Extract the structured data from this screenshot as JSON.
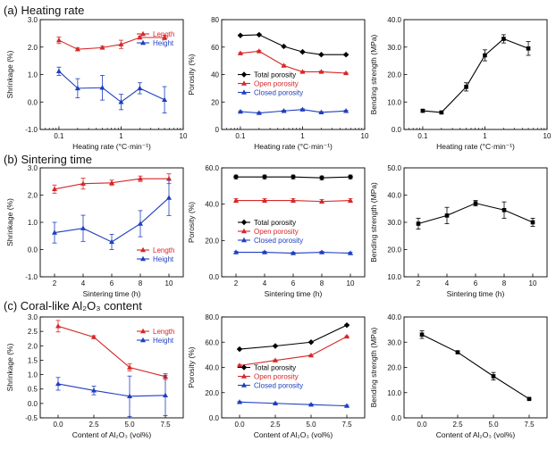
{
  "sections": [
    {
      "label": "(a) Heating rate"
    },
    {
      "label": "(b) Sintering time"
    },
    {
      "label": "(c) Coral-like Al₂O₃ content"
    }
  ],
  "colors": {
    "length": "#d62728",
    "height": "#1f3fbf",
    "total": "#000000",
    "open": "#d62728",
    "closed": "#1f3fbf"
  },
  "chart_data": [
    {
      "type": "line",
      "section": 0,
      "xscale": "log",
      "xlabel": "Heating rate (°C·min⁻¹)",
      "ylabel": "Shrinkage (%)",
      "xlim": [
        0.05,
        10
      ],
      "ylim": [
        -1.0,
        3.0
      ],
      "xticks": [
        0.1,
        1,
        10
      ],
      "xticklabels": [
        "0.1",
        "1",
        "10"
      ],
      "yticks": [
        -1.0,
        0.0,
        1.0,
        2.0,
        3.0
      ],
      "yticklabels": [
        "-1.0",
        "0.0",
        "1.0",
        "2.0",
        "3.0"
      ],
      "legend": "top-right",
      "x": [
        0.1,
        0.2,
        0.5,
        1,
        2,
        5
      ],
      "series": [
        {
          "name": "Length",
          "color": "#d62728",
          "marker": "triangle",
          "values": [
            2.25,
            1.92,
            1.98,
            2.1,
            2.35,
            2.35
          ],
          "errors": [
            0.12,
            0.05,
            0.05,
            0.15,
            0.05,
            0.08
          ]
        },
        {
          "name": "Height",
          "color": "#1f3fbf",
          "marker": "triangle",
          "values": [
            1.12,
            0.5,
            0.52,
            0.0,
            0.5,
            0.08
          ],
          "errors": [
            0.15,
            0.35,
            0.45,
            0.28,
            0.2,
            0.48
          ]
        }
      ]
    },
    {
      "type": "line",
      "section": 0,
      "xscale": "log",
      "xlabel": "Heating rate (°C·min⁻¹)",
      "ylabel": "Porosity (%)",
      "xlim": [
        0.05,
        10
      ],
      "ylim": [
        0,
        80
      ],
      "xticks": [
        0.1,
        1,
        10
      ],
      "xticklabels": [
        "0.1",
        "1",
        "10"
      ],
      "yticks": [
        0,
        20,
        40,
        60,
        80
      ],
      "yticklabels": [
        "0",
        "20",
        "40",
        "60",
        "80"
      ],
      "legend": "center",
      "x": [
        0.1,
        0.2,
        0.5,
        1,
        2,
        5
      ],
      "series": [
        {
          "name": "Total porosity",
          "color": "#000000",
          "marker": "diamond",
          "values": [
            68.5,
            69,
            60.5,
            56.5,
            54.5,
            54.5
          ],
          "errors": [
            0.5,
            0.5,
            0.5,
            0.5,
            0.5,
            0.5
          ]
        },
        {
          "name": "Open porosity",
          "color": "#d62728",
          "marker": "triangle",
          "values": [
            55.5,
            57,
            46.5,
            42,
            42,
            41
          ],
          "errors": [
            0.5,
            0.5,
            0.5,
            0.5,
            0.5,
            0.5
          ]
        },
        {
          "name": "Closed porosity",
          "color": "#1f3fbf",
          "marker": "triangle",
          "values": [
            13,
            12,
            13.5,
            14.5,
            12.5,
            13.5
          ],
          "errors": [
            0.5,
            0.5,
            0.5,
            0.5,
            0.5,
            0.5
          ]
        }
      ]
    },
    {
      "type": "line",
      "section": 0,
      "xscale": "log",
      "xlabel": "Heating rate (°C·min⁻¹)",
      "ylabel": "Bending strength (MPa)",
      "xlim": [
        0.05,
        10
      ],
      "ylim": [
        0,
        40
      ],
      "xticks": [
        0.1,
        1,
        10
      ],
      "xticklabels": [
        "0.1",
        "1",
        "10"
      ],
      "yticks": [
        0,
        10,
        20,
        30,
        40
      ],
      "yticklabels": [
        "0.0",
        "10.0",
        "20.0",
        "30.0",
        "40.0"
      ],
      "x": [
        0.1,
        0.2,
        0.5,
        1,
        2,
        5
      ],
      "series": [
        {
          "color": "#000000",
          "marker": "square",
          "values": [
            6.8,
            6.2,
            15.5,
            27,
            33,
            29.5
          ],
          "errors": [
            0.5,
            0.4,
            1.5,
            2.0,
            1.5,
            2.5
          ]
        }
      ]
    },
    {
      "type": "line",
      "section": 1,
      "xlabel": "Sintering time (h)",
      "ylabel": "Shrinkage (%)",
      "xlim": [
        1,
        11
      ],
      "ylim": [
        -1.0,
        3.0
      ],
      "xticks": [
        2,
        4,
        6,
        8,
        10
      ],
      "xticklabels": [
        "2",
        "4",
        "6",
        "8",
        "10"
      ],
      "yticks": [
        -1.0,
        0.0,
        1.0,
        2.0,
        3.0
      ],
      "yticklabels": [
        "-1.0",
        "0.0",
        "1.0",
        "2.0",
        "3.0"
      ],
      "legend": "bottom-right",
      "x": [
        2,
        4,
        6,
        8,
        10
      ],
      "series": [
        {
          "name": "Length",
          "color": "#d62728",
          "marker": "triangle",
          "values": [
            2.22,
            2.42,
            2.45,
            2.6,
            2.6
          ],
          "errors": [
            0.15,
            0.2,
            0.1,
            0.1,
            0.18
          ]
        },
        {
          "name": "Height",
          "color": "#1f3fbf",
          "marker": "triangle",
          "values": [
            0.62,
            0.78,
            0.28,
            0.95,
            1.9
          ],
          "errors": [
            0.38,
            0.48,
            0.28,
            0.48,
            0.65
          ]
        }
      ]
    },
    {
      "type": "line",
      "section": 1,
      "xlabel": "Sintering time (h)",
      "ylabel": "Porosity (%)",
      "xlim": [
        1,
        11
      ],
      "ylim": [
        0,
        60
      ],
      "xticks": [
        2,
        4,
        6,
        8,
        10
      ],
      "xticklabels": [
        "2",
        "4",
        "6",
        "8",
        "10"
      ],
      "yticks": [
        0,
        20,
        40,
        60
      ],
      "yticklabels": [
        "0.0",
        "20.0",
        "40.0",
        "60.0"
      ],
      "legend": "center",
      "x": [
        2,
        4,
        6,
        8,
        10
      ],
      "series": [
        {
          "name": "Total porosity",
          "color": "#000000",
          "marker": "diamond",
          "values": [
            55,
            55,
            55,
            54.5,
            55
          ],
          "errors": [
            1,
            1,
            1,
            1,
            1
          ]
        },
        {
          "name": "Open porosity",
          "color": "#d62728",
          "marker": "triangle",
          "values": [
            42,
            42,
            42,
            41.5,
            42
          ],
          "errors": [
            1,
            1,
            1,
            1,
            1
          ]
        },
        {
          "name": "Closed porosity",
          "color": "#1f3fbf",
          "marker": "triangle",
          "values": [
            13.5,
            13.5,
            13,
            13.5,
            13
          ],
          "errors": [
            0.5,
            0.5,
            0.5,
            0.5,
            0.5
          ]
        }
      ]
    },
    {
      "type": "line",
      "section": 1,
      "xlabel": "Sintering time (h)",
      "ylabel": "Bending strength (MPa)",
      "xlim": [
        1,
        11
      ],
      "ylim": [
        10,
        50
      ],
      "xticks": [
        2,
        4,
        6,
        8,
        10
      ],
      "xticklabels": [
        "2",
        "4",
        "6",
        "8",
        "10"
      ],
      "yticks": [
        10,
        20,
        30,
        40,
        50
      ],
      "yticklabels": [
        "10.0",
        "20.0",
        "30.0",
        "40.0",
        "50.0"
      ],
      "x": [
        2,
        4,
        6,
        8,
        10
      ],
      "series": [
        {
          "color": "#000000",
          "marker": "square",
          "values": [
            29.5,
            32.5,
            37,
            34.5,
            30
          ],
          "errors": [
            2.0,
            3.0,
            1.0,
            3.0,
            1.5
          ]
        }
      ]
    },
    {
      "type": "line",
      "section": 2,
      "xlabel": "Content of Al₂O₃ (vol%)",
      "ylabel": "Shrinkage (%)",
      "xlim": [
        -1.25,
        8.75
      ],
      "ylim": [
        -0.5,
        3.0
      ],
      "xticks": [
        0.0,
        2.5,
        5.0,
        7.5
      ],
      "xticklabels": [
        "0.0",
        "2.5",
        "5.0",
        "7.5"
      ],
      "yticks": [
        -0.5,
        0.0,
        0.5,
        1.0,
        1.5,
        2.0,
        2.5,
        3.0
      ],
      "yticklabels": [
        "-0.5",
        "0.0",
        "0.5",
        "1.0",
        "1.5",
        "2.0",
        "2.5",
        "3.0"
      ],
      "legend": "top-right",
      "x": [
        0.0,
        2.5,
        5.0,
        7.5
      ],
      "series": [
        {
          "name": "Length",
          "color": "#d62728",
          "marker": "triangle",
          "values": [
            2.68,
            2.3,
            1.25,
            0.93
          ],
          "errors": [
            0.2,
            0.05,
            0.12,
            0.1
          ]
        },
        {
          "name": "Height",
          "color": "#1f3fbf",
          "marker": "triangle",
          "values": [
            0.68,
            0.45,
            0.25,
            0.28
          ],
          "errors": [
            0.22,
            0.15,
            0.7,
            0.7
          ]
        }
      ]
    },
    {
      "type": "line",
      "section": 2,
      "xlabel": "Content of Al₂O₃ (vol%)",
      "ylabel": "Porosity (%)",
      "xlim": [
        -1.25,
        8.75
      ],
      "ylim": [
        0,
        80
      ],
      "xticks": [
        0.0,
        2.5,
        5.0,
        7.5
      ],
      "xticklabels": [
        "0.0",
        "2.5",
        "5.0",
        "7.5"
      ],
      "yticks": [
        0,
        20,
        40,
        60,
        80
      ],
      "yticklabels": [
        "0.0",
        "20.0",
        "40.0",
        "60.0",
        "80.0"
      ],
      "legend": "center",
      "x": [
        0.0,
        2.5,
        5.0,
        7.5
      ],
      "series": [
        {
          "name": "Total porosity",
          "color": "#000000",
          "marker": "diamond",
          "values": [
            54.5,
            57,
            60,
            73.5
          ],
          "errors": [
            0.5,
            0.5,
            0.5,
            0.5
          ]
        },
        {
          "name": "Open porosity",
          "color": "#d62728",
          "marker": "triangle",
          "values": [
            41.5,
            45.5,
            49.5,
            64.5
          ],
          "errors": [
            0.5,
            0.5,
            0.5,
            0.5
          ]
        },
        {
          "name": "Closed porosity",
          "color": "#1f3fbf",
          "marker": "triangle",
          "values": [
            12.5,
            11.5,
            10.5,
            9.5
          ],
          "errors": [
            0.5,
            0.5,
            0.5,
            0.5
          ]
        }
      ]
    },
    {
      "type": "line",
      "section": 2,
      "xlabel": "Content of Al₂O₃ (vol%)",
      "ylabel": "Bending strength (MPa)",
      "xlim": [
        -1.25,
        8.75
      ],
      "ylim": [
        0,
        40
      ],
      "xticks": [
        0.0,
        2.5,
        5.0,
        7.5
      ],
      "xticklabels": [
        "0.0",
        "2.5",
        "5.0",
        "7.5"
      ],
      "yticks": [
        0,
        10,
        20,
        30,
        40
      ],
      "yticklabels": [
        "0.0",
        "10.0",
        "20.0",
        "30.0",
        "40.0"
      ],
      "x": [
        0.0,
        2.5,
        5.0,
        7.5
      ],
      "series": [
        {
          "color": "#000000",
          "marker": "square",
          "values": [
            33,
            26,
            16.5,
            7.5
          ],
          "errors": [
            1.5,
            0.3,
            1.5,
            0.3
          ]
        }
      ]
    }
  ]
}
